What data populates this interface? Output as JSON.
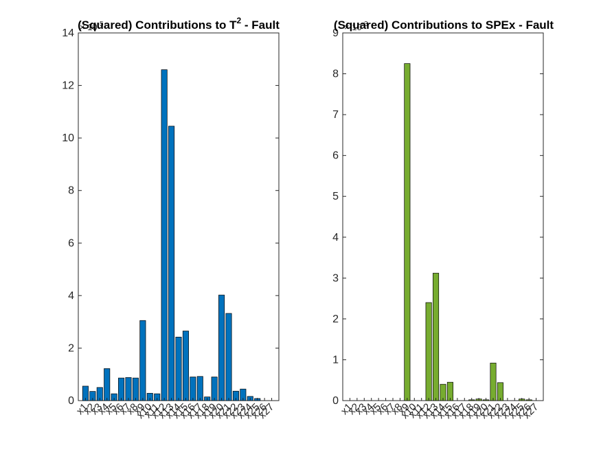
{
  "chart_data": [
    {
      "type": "bar",
      "title": "(Squared) Contributions to T^2 - Fault",
      "title_main": "(Squared) Contributions to T",
      "title_sup": "2",
      "title_tail": " - Fault",
      "exponent_label": "x 10^-5",
      "exponent_base": "× 10",
      "exponent_power": "-5",
      "xlabel": "",
      "ylabel": "",
      "ylim": [
        0,
        14
      ],
      "yticks": [
        0,
        2,
        4,
        6,
        8,
        10,
        12,
        14
      ],
      "ytick_labels": [
        "0",
        "2",
        "4",
        "6",
        "8",
        "10",
        "12",
        "14"
      ],
      "color": "#0072BD",
      "categories": [
        "x1",
        "x2",
        "x3",
        "x4",
        "x5",
        "x6",
        "x7",
        "x8",
        "x9",
        "x10",
        "x11",
        "x12",
        "x13",
        "x14",
        "x15",
        "x16",
        "x17",
        "x18",
        "x19",
        "x20",
        "x21",
        "x22",
        "x23",
        "x24",
        "x25",
        "x26",
        "x27"
      ],
      "values": [
        0.55,
        0.35,
        0.5,
        1.22,
        0.26,
        0.86,
        0.88,
        0.86,
        3.05,
        0.28,
        0.26,
        12.6,
        10.45,
        2.42,
        2.65,
        0.9,
        0.92,
        0.14,
        0.9,
        4.02,
        3.32,
        0.36,
        0.44,
        0.16,
        0.08,
        0.0,
        0.0
      ],
      "grid": false
    },
    {
      "type": "bar",
      "title": "(Squared) Contributions to SPEx - Fault",
      "title_main": "(Squared) Contributions to SPEx - Fault",
      "exponent_label": "x 10^-3",
      "exponent_base": "× 10",
      "exponent_power": "-3",
      "xlabel": "",
      "ylabel": "",
      "ylim": [
        0,
        9
      ],
      "yticks": [
        0,
        1,
        2,
        3,
        4,
        5,
        6,
        7,
        8,
        9
      ],
      "ytick_labels": [
        "0",
        "1",
        "2",
        "3",
        "4",
        "5",
        "6",
        "7",
        "8",
        "9"
      ],
      "color": "#77AC30",
      "categories": [
        "x1",
        "x2",
        "x3",
        "x4",
        "x5",
        "x6",
        "x7",
        "x8",
        "x9",
        "x10",
        "x11",
        "x12",
        "x13",
        "x14",
        "x15",
        "x16",
        "x17",
        "x18",
        "x19",
        "x20",
        "x21",
        "x22",
        "x23",
        "x24",
        "x25",
        "x26",
        "x27"
      ],
      "values": [
        0.0,
        0.0,
        0.0,
        0.0,
        0.0,
        0.0,
        0.0,
        0.0,
        8.25,
        0.0,
        0.0,
        2.4,
        3.12,
        0.4,
        0.45,
        0.0,
        0.0,
        0.02,
        0.04,
        0.02,
        0.92,
        0.44,
        0.0,
        0.0,
        0.04,
        0.02,
        0.0
      ],
      "grid": false
    }
  ]
}
